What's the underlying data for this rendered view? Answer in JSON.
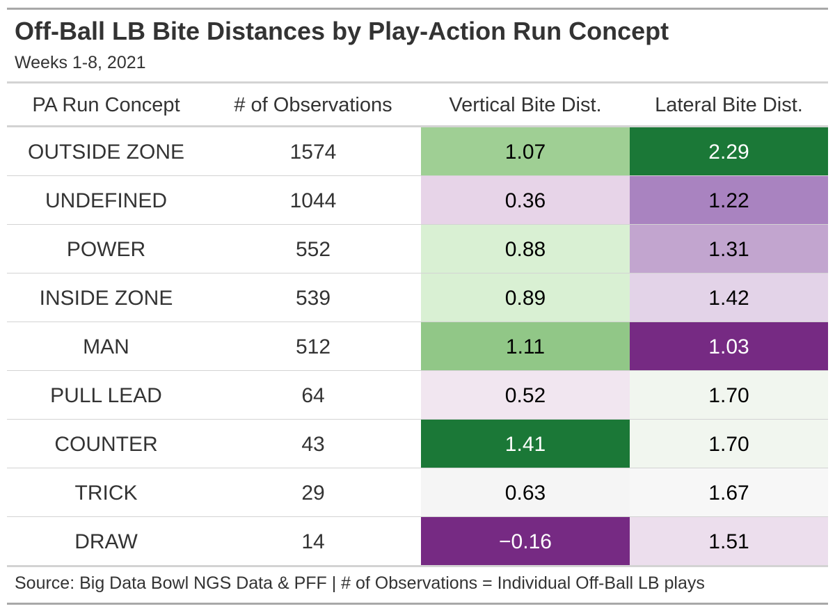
{
  "chart_data": {
    "type": "table",
    "title": "Off-Ball LB Bite Distances by Play-Action Run Concept",
    "subtitle": "Weeks 1-8, 2021",
    "columns": [
      "PA Run Concept",
      "# of Observations",
      "Vertical Bite Dist.",
      "Lateral Bite Dist."
    ],
    "rows": [
      {
        "concept": "OUTSIDE ZONE",
        "observations": "1574",
        "vertical": "1.07",
        "lateral": "2.29",
        "vertical_color": "#9fcf94",
        "lateral_color": "#1b7837"
      },
      {
        "concept": "UNDEFINED",
        "observations": "1044",
        "vertical": "0.36",
        "lateral": "1.22",
        "vertical_color": "#e7d4e8",
        "lateral_color": "#a983c0"
      },
      {
        "concept": "POWER",
        "observations": "552",
        "vertical": "0.88",
        "lateral": "1.31",
        "vertical_color": "#d9f0d3",
        "lateral_color": "#c2a5cf"
      },
      {
        "concept": "INSIDE ZONE",
        "observations": "539",
        "vertical": "0.89",
        "lateral": "1.42",
        "vertical_color": "#d9f0d3",
        "lateral_color": "#e3d3e8"
      },
      {
        "concept": "MAN",
        "observations": "512",
        "vertical": "1.11",
        "lateral": "1.03",
        "vertical_color": "#91c787",
        "lateral_color": "#762a83"
      },
      {
        "concept": "PULL LEAD",
        "observations": "64",
        "vertical": "0.52",
        "lateral": "1.70",
        "vertical_color": "#f1e6f0",
        "lateral_color": "#f1f6ef"
      },
      {
        "concept": "COUNTER",
        "observations": "43",
        "vertical": "1.41",
        "lateral": "1.70",
        "vertical_color": "#1b7837",
        "lateral_color": "#f1f6ef"
      },
      {
        "concept": "TRICK",
        "observations": "29",
        "vertical": "0.63",
        "lateral": "1.67",
        "vertical_color": "#f5f5f5",
        "lateral_color": "#f7f7f7"
      },
      {
        "concept": "DRAW",
        "observations": "14",
        "vertical": "−0.16",
        "lateral": "1.51",
        "vertical_color": "#762a83",
        "lateral_color": "#ecdeed"
      }
    ],
    "dark_text_color": "#000000",
    "light_text_color": "#ffffff",
    "source": "Source: Big Data Bowl NGS Data & PFF | # of Observations = Individual Off-Ball LB plays"
  }
}
